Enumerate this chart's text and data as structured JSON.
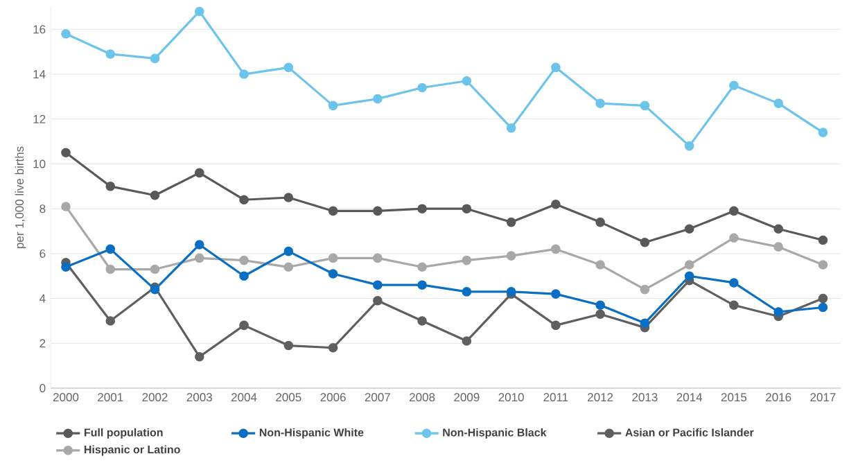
{
  "chart_data": {
    "type": "line",
    "ylabel": "per 1,000 live births",
    "categories": [
      "2000",
      "2001",
      "2002",
      "2003",
      "2004",
      "2005",
      "2006",
      "2007",
      "2008",
      "2009",
      "2010",
      "2011",
      "2012",
      "2013",
      "2014",
      "2015",
      "2016",
      "2017"
    ],
    "series": [
      {
        "name": "Full population",
        "color": "#595959",
        "values": [
          10.5,
          9.0,
          8.6,
          9.6,
          8.4,
          8.5,
          7.9,
          7.9,
          8.0,
          8.0,
          7.4,
          8.2,
          7.4,
          6.5,
          7.1,
          7.9,
          7.1,
          6.6
        ]
      },
      {
        "name": "Non-Hispanic White",
        "color": "#0a6fc2",
        "values": [
          5.4,
          6.2,
          4.4,
          6.4,
          5.0,
          6.1,
          5.1,
          4.6,
          4.6,
          4.3,
          4.3,
          4.2,
          3.7,
          2.9,
          5.0,
          4.7,
          3.4,
          3.6
        ]
      },
      {
        "name": "Non-Hispanic Black",
        "color": "#6cc4ea",
        "values": [
          15.8,
          14.9,
          14.7,
          16.8,
          14.0,
          14.3,
          12.6,
          12.9,
          13.4,
          13.7,
          11.6,
          14.3,
          12.7,
          12.6,
          10.8,
          13.5,
          12.7,
          11.4
        ]
      },
      {
        "name": "Asian or Pacific Islander",
        "color": "#5f5f5f",
        "values": [
          5.6,
          3.0,
          4.5,
          1.4,
          2.8,
          1.9,
          1.8,
          3.9,
          3.0,
          2.1,
          4.2,
          2.8,
          3.3,
          2.7,
          4.8,
          3.7,
          3.2,
          4.0
        ]
      },
      {
        "name": "Hispanic or Latino",
        "color": "#a8a8a8",
        "values": [
          8.1,
          5.3,
          5.3,
          5.8,
          5.7,
          5.4,
          5.8,
          5.8,
          5.4,
          5.7,
          5.9,
          6.2,
          5.5,
          4.4,
          5.5,
          6.7,
          6.3,
          5.5
        ]
      }
    ],
    "ylim": [
      0,
      17
    ],
    "yticks": [
      0,
      2,
      4,
      6,
      8,
      10,
      12,
      14,
      16
    ],
    "grid": "y",
    "legend": "bottom",
    "marker": "circle",
    "line_style": "solid"
  }
}
